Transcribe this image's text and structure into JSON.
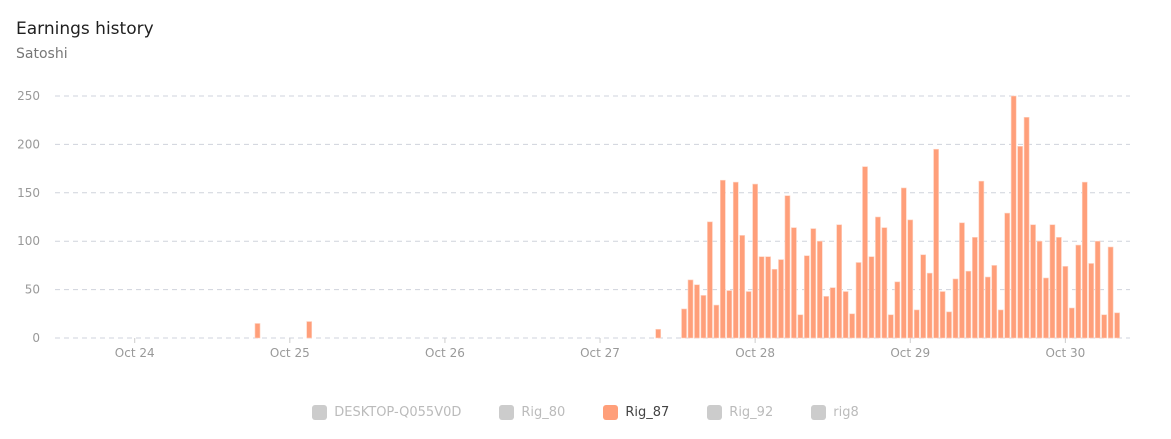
{
  "header": {
    "title": "Earnings history",
    "subtitle": "Satoshi"
  },
  "chart_data": {
    "type": "bar",
    "ylabel": "Satoshi",
    "ylim": [
      0,
      250
    ],
    "yticks": [
      0,
      50,
      100,
      150,
      200,
      250
    ],
    "xlim": [
      "Oct 23 11:40",
      "Oct 30 10:00"
    ],
    "xticks": [
      "Oct 24",
      "Oct 25",
      "Oct 26",
      "Oct 27",
      "Oct 28",
      "Oct 29",
      "Oct 30"
    ],
    "grid": true,
    "bar_color": "#ff9f7a",
    "interval": "hourly",
    "series": [
      {
        "name": "Rig_87",
        "points": [
          {
            "t": "Oct 24 19:00",
            "v": 15
          },
          {
            "t": "Oct 25 03:00",
            "v": 17
          },
          {
            "t": "Oct 27 09:00",
            "v": 9
          },
          {
            "start": "Oct 27 13:00",
            "values": [
              30,
              60,
              55,
              44,
              120,
              34,
              163,
              49,
              161,
              106,
              48,
              159,
              84,
              84,
              71,
              81,
              147,
              114,
              24,
              85,
              113,
              100,
              43,
              52,
              117,
              48,
              25,
              78,
              177,
              84,
              125,
              114,
              24,
              58,
              155,
              122,
              29,
              86,
              67,
              195,
              48,
              27,
              61,
              119,
              69,
              104,
              162,
              63,
              75,
              29,
              129,
              250,
              198,
              228,
              117,
              100,
              62,
              117,
              104,
              74,
              31,
              96,
              161,
              77,
              100,
              24,
              94,
              26
            ]
          }
        ]
      }
    ]
  },
  "legend": {
    "items": [
      {
        "label": "DESKTOP-Q055V0D",
        "active": false
      },
      {
        "label": "Rig_80",
        "active": false
      },
      {
        "label": "Rig_87",
        "active": true
      },
      {
        "label": "Rig_92",
        "active": false
      },
      {
        "label": "rig8",
        "active": false
      }
    ]
  }
}
